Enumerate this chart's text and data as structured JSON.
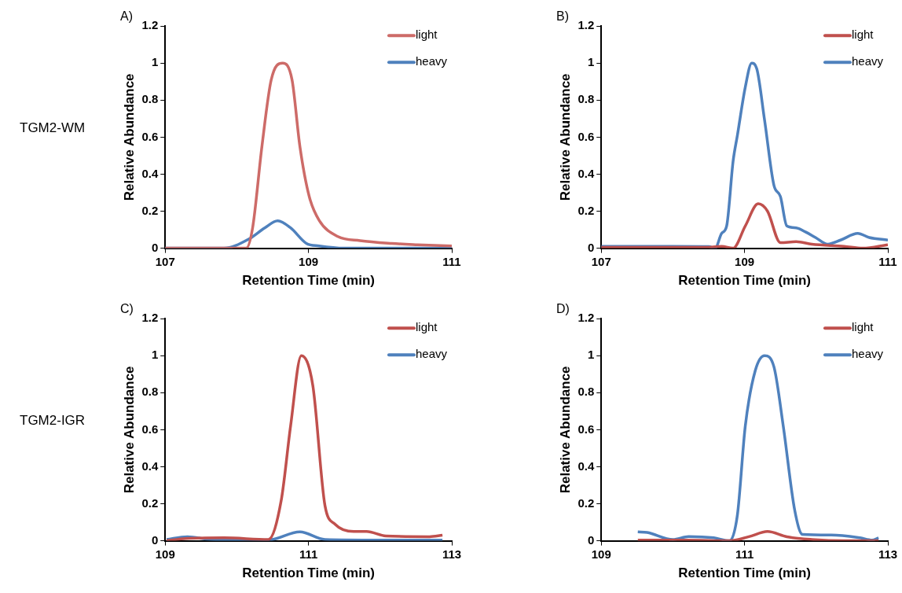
{
  "chart_data": [
    {
      "type": "line",
      "title": "A)",
      "xlabel": "Retention Time (min)",
      "ylabel": "Relative Abundance",
      "xlim": [
        107,
        111
      ],
      "xticks": [
        107,
        109,
        111
      ],
      "ylim": [
        0,
        1.2
      ],
      "yticks": [
        0,
        0.2,
        0.4,
        0.6,
        0.8,
        1,
        1.2
      ],
      "legend": "top right",
      "marker": "none",
      "annotations": [
        "TGM2-WM"
      ],
      "series": [
        {
          "name": "light",
          "color": "#cd6b68",
          "x": [
            107,
            107.5,
            108,
            108.13,
            108.22,
            108.35,
            108.48,
            108.64,
            108.77,
            108.88,
            109.01,
            109.15,
            109.41,
            109.72,
            110.16,
            110.52,
            111
          ],
          "values": [
            0,
            0,
            0,
            0,
            0.11,
            0.55,
            0.91,
            1.0,
            0.91,
            0.55,
            0.28,
            0.15,
            0.063,
            0.041,
            0.026,
            0.019,
            0.012
          ]
        },
        {
          "name": "heavy",
          "color": "#4f81bd",
          "x": [
            107,
            107.5,
            107.82,
            108.17,
            108.39,
            108.57,
            108.75,
            108.97,
            109.15,
            109.5,
            110,
            110.5,
            111
          ],
          "values": [
            0,
            0,
            0,
            0.05,
            0.11,
            0.148,
            0.11,
            0.026,
            0.012,
            0,
            0,
            0,
            0
          ]
        }
      ]
    },
    {
      "type": "line",
      "title": "B)",
      "xlabel": "Retention Time (min)",
      "ylabel": "Relative Abundance",
      "xlim": [
        107,
        111
      ],
      "xticks": [
        107,
        109,
        111
      ],
      "ylim": [
        0,
        1.2
      ],
      "yticks": [
        0,
        0.2,
        0.4,
        0.6,
        0.8,
        1,
        1.2
      ],
      "legend": "top right",
      "marker": "none",
      "series": [
        {
          "name": "light",
          "color": "#c0504d",
          "x": [
            107,
            107.5,
            108,
            108.5,
            108.68,
            108.84,
            109.01,
            109.19,
            109.32,
            109.5,
            109.72,
            109.94,
            110.39,
            110.65,
            111
          ],
          "values": [
            0.005,
            0.005,
            0.005,
            0.005,
            0.01,
            0,
            0.12,
            0.24,
            0.2,
            0.03,
            0.035,
            0.022,
            0.01,
            0,
            0.019
          ]
        },
        {
          "name": "heavy",
          "color": "#4f81bd",
          "x": [
            107,
            107.5,
            108,
            108.5,
            108.59,
            108.68,
            108.75,
            108.84,
            108.9,
            109.01,
            109.1,
            109.17,
            109.28,
            109.41,
            109.5,
            109.59,
            109.72,
            109.85,
            109.99,
            110.16,
            110.34,
            110.58,
            110.74,
            111
          ],
          "values": [
            0.01,
            0.01,
            0.01,
            0.009,
            0,
            0.08,
            0.12,
            0.47,
            0.61,
            0.87,
            1.0,
            0.97,
            0.69,
            0.34,
            0.28,
            0.12,
            0.11,
            0.088,
            0.058,
            0.022,
            0.044,
            0.08,
            0.058,
            0.044
          ]
        }
      ]
    },
    {
      "type": "line",
      "title": "C)",
      "xlabel": "Retention Time (min)",
      "ylabel": "Relative Abundance",
      "xlim": [
        109,
        113
      ],
      "xticks": [
        109,
        111,
        113
      ],
      "ylim": [
        0,
        1.2
      ],
      "yticks": [
        0,
        0.2,
        0.4,
        0.6,
        0.8,
        1,
        1.2
      ],
      "legend": "top right",
      "marker": "none",
      "annotations": [
        "TGM2-IGR"
      ],
      "series": [
        {
          "name": "light",
          "color": "#c0504d",
          "x": [
            109.02,
            109.29,
            109.82,
            110.44,
            110.62,
            110.75,
            110.9,
            111.06,
            111.23,
            111.37,
            111.63,
            111.81,
            112.08,
            112.69,
            112.87
          ],
          "values": [
            0,
            0.012,
            0.016,
            0.007,
            0.22,
            0.62,
            1.0,
            0.84,
            0.19,
            0.09,
            0.05,
            0.05,
            0.026,
            0.022,
            0.03
          ]
        },
        {
          "name": "heavy",
          "color": "#4f81bd",
          "x": [
            109.02,
            109.31,
            109.64,
            110.44,
            110.88,
            111.23,
            112,
            112.87
          ],
          "values": [
            0.007,
            0.022,
            0.007,
            0.004,
            0.048,
            0.007,
            0.004,
            0.004
          ]
        }
      ]
    },
    {
      "type": "line",
      "title": "D)",
      "xlabel": "Retention Time (min)",
      "ylabel": "Relative Abundance",
      "xlim": [
        109,
        113
      ],
      "xticks": [
        109,
        111,
        113
      ],
      "ylim": [
        0,
        1.2
      ],
      "yticks": [
        0,
        0.2,
        0.4,
        0.6,
        0.8,
        1,
        1.2
      ],
      "legend": "top right",
      "marker": "none",
      "series": [
        {
          "name": "light",
          "color": "#c0504d",
          "x": [
            109.51,
            110.2,
            110.79,
            111.06,
            111.32,
            111.59,
            111.94,
            112.4,
            112.87
          ],
          "values": [
            0.004,
            0.004,
            0,
            0.022,
            0.05,
            0.022,
            0.007,
            0,
            0
          ]
        },
        {
          "name": "heavy",
          "color": "#4f81bd",
          "x": [
            109.51,
            109.64,
            110.0,
            110.22,
            110.57,
            110.79,
            110.9,
            111.01,
            111.15,
            111.28,
            111.41,
            111.54,
            111.7,
            111.81,
            112.21,
            112.61,
            112.78,
            112.87
          ],
          "values": [
            0.048,
            0.045,
            0.007,
            0.023,
            0.016,
            0,
            0.14,
            0.62,
            0.92,
            1.0,
            0.94,
            0.62,
            0.165,
            0.034,
            0.031,
            0.016,
            0.004,
            0.016
          ]
        }
      ]
    }
  ]
}
